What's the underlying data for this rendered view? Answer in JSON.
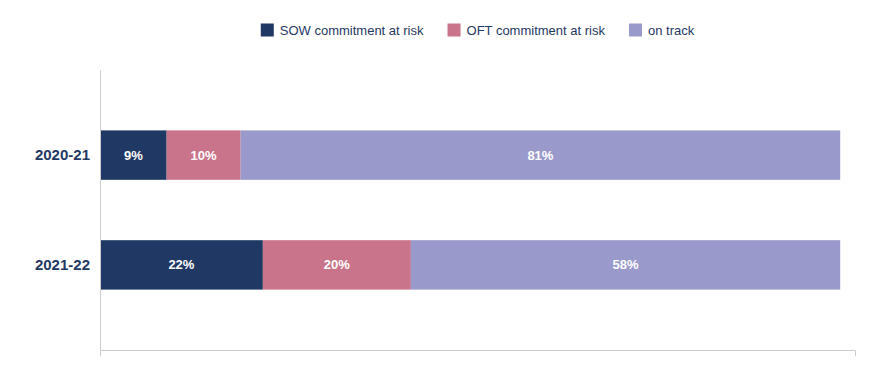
{
  "chart_data": {
    "type": "bar",
    "orientation": "horizontal",
    "stacked": true,
    "categories": [
      "2021-22",
      "2020-21"
    ],
    "series": [
      {
        "name": "SOW commitment at risk",
        "color": "#1f3864",
        "values": [
          22,
          9
        ],
        "value_labels": [
          "22%",
          "9%"
        ]
      },
      {
        "name": "OFT commitment at risk",
        "color": "#c9748a",
        "values": [
          20,
          10
        ],
        "value_labels": [
          "20%",
          "10%"
        ]
      },
      {
        "name": "on track",
        "color": "#9999cc",
        "values": [
          58,
          81
        ],
        "value_labels": [
          "58%",
          "81%"
        ]
      }
    ],
    "xlim": [
      0,
      102
    ],
    "xticks": [],
    "data_labels": true,
    "tick_labels": "y",
    "grid": false,
    "legend": "top"
  }
}
